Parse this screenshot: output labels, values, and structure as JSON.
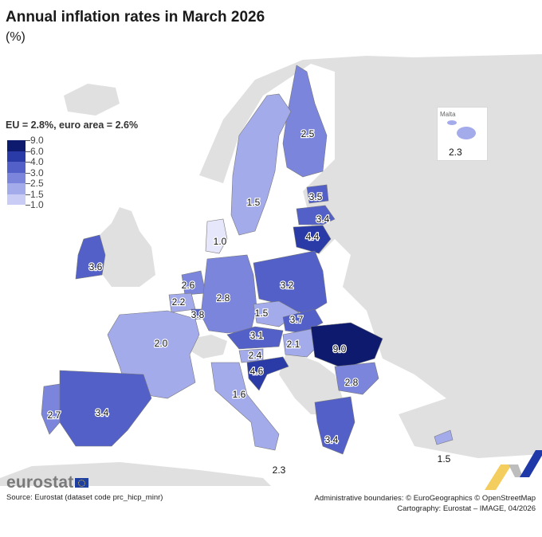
{
  "title": "Annual inflation rates in March 2026",
  "subtitle": "(%)",
  "legend": {
    "title": "EU = 2.8%, euro area = 2.6%",
    "breaks": [
      "9.0",
      "6.0",
      "4.0",
      "3.0",
      "2.5",
      "1.5",
      "1.0"
    ],
    "colors": [
      "#0d1a6e",
      "#2a3aa6",
      "#5260c8",
      "#7a85db",
      "#a4abeb",
      "#c9ccf5",
      "#e6e7fb"
    ]
  },
  "colors": {
    "non_eu_land": "#e0e0e0",
    "sea": "#ffffff",
    "border": "#666666"
  },
  "chart_data": {
    "type": "choropleth",
    "title": "Annual inflation rates in March 2026",
    "unit": "%",
    "eu_average": 2.8,
    "euro_area_average": 2.6,
    "bins": [
      1.0,
      1.5,
      2.5,
      3.0,
      4.0,
      6.0,
      9.0
    ],
    "countries": [
      {
        "name": "Finland",
        "value": 2.5
      },
      {
        "name": "Sweden",
        "value": 1.5
      },
      {
        "name": "Estonia",
        "value": 3.5
      },
      {
        "name": "Latvia",
        "value": 3.4
      },
      {
        "name": "Lithuania",
        "value": 4.4
      },
      {
        "name": "Denmark",
        "value": 1.0
      },
      {
        "name": "Ireland",
        "value": 3.6
      },
      {
        "name": "Netherlands",
        "value": 2.6
      },
      {
        "name": "Belgium",
        "value": 2.2
      },
      {
        "name": "Luxembourg",
        "value": 3.8
      },
      {
        "name": "Germany",
        "value": 2.8
      },
      {
        "name": "Poland",
        "value": 3.2
      },
      {
        "name": "Czechia",
        "value": 1.5
      },
      {
        "name": "Slovakia",
        "value": 3.7
      },
      {
        "name": "Austria",
        "value": 3.1
      },
      {
        "name": "Hungary",
        "value": 2.1
      },
      {
        "name": "Romania",
        "value": 9.0
      },
      {
        "name": "Slovenia",
        "value": 2.4
      },
      {
        "name": "Croatia",
        "value": 4.6
      },
      {
        "name": "France",
        "value": 2.0
      },
      {
        "name": "Italy",
        "value": 1.6
      },
      {
        "name": "Bulgaria",
        "value": 2.8
      },
      {
        "name": "Greece",
        "value": 3.4
      },
      {
        "name": "Spain",
        "value": 3.4
      },
      {
        "name": "Portugal",
        "value": 2.7
      },
      {
        "name": "Cyprus",
        "value": 1.5
      },
      {
        "name": "Malta",
        "value": 2.3
      }
    ],
    "labels": {
      "Finland": "2.5",
      "Sweden": "1.5",
      "Estonia": "3.5",
      "Latvia": "3.4",
      "Lithuania": "4.4",
      "Denmark": "1.0",
      "Ireland": "3.6",
      "Netherlands": "2.6",
      "Belgium": "2.2",
      "Luxembourg": "3.8",
      "Germany": "2.8",
      "Poland": "3.2",
      "Czechia": "1.5",
      "Slovakia": "3.7",
      "Austria": "3.1",
      "Hungary": "2.1",
      "Romania": "9.0",
      "Slovenia": "2.4",
      "Croatia": "4.6",
      "France": "2.0",
      "Italy": "1.6",
      "Bulgaria": "2.8",
      "Greece": "3.4",
      "Spain": "3.4",
      "Portugal": "2.7",
      "Cyprus": "1.5",
      "Malta": "2.3"
    }
  },
  "inset": {
    "name": "Malta",
    "value": "2.3"
  },
  "footer": {
    "logo_text": "eurostat",
    "source": "Source: Eurostat (dataset code prc_hicp_minr)",
    "boundaries": "Administrative boundaries: © EuroGeographics © OpenStreetMap",
    "cartography": "Cartography: Eurostat – IMAGE, 04/2026"
  }
}
